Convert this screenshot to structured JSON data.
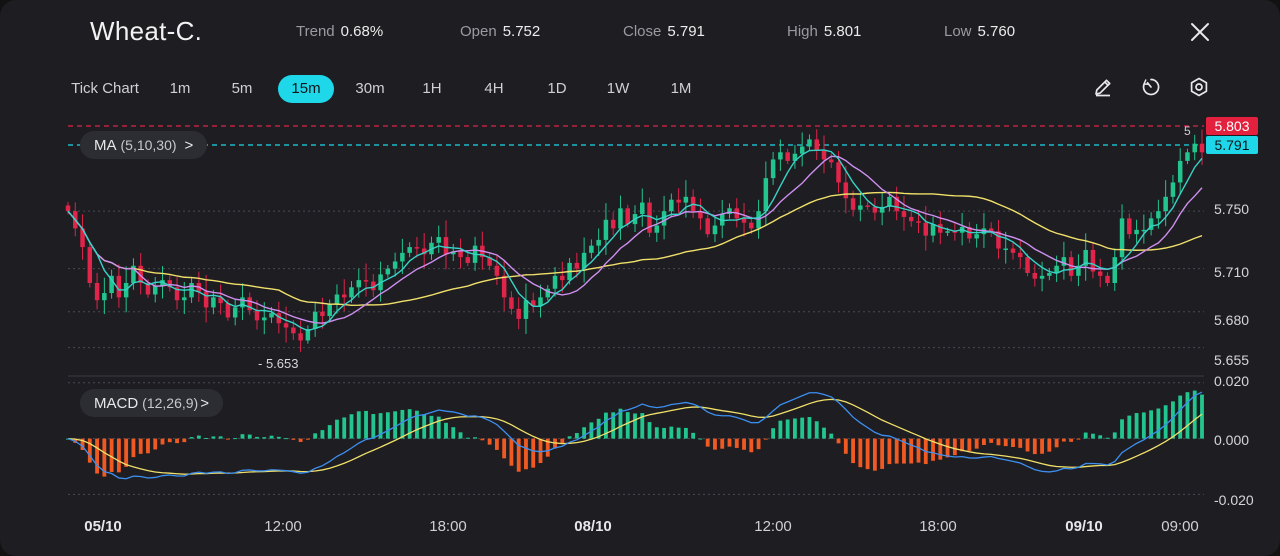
{
  "header": {
    "symbol": "Wheat-C.",
    "stats": [
      {
        "key": "Trend",
        "value": "0.68%"
      },
      {
        "key": "Open",
        "value": "5.752"
      },
      {
        "key": "Close",
        "value": "5.791"
      },
      {
        "key": "High",
        "value": "5.801"
      },
      {
        "key": "Low",
        "value": "5.760"
      }
    ],
    "close_icon": "close-icon"
  },
  "intervals": [
    "Tick Chart",
    "1m",
    "5m",
    "15m",
    "30m",
    "1H",
    "4H",
    "1D",
    "1W",
    "1M"
  ],
  "active_interval": "15m",
  "toolbar_icons": [
    "pencil-icon",
    "timer-icon",
    "settings-icon"
  ],
  "indicators": {
    "ma": {
      "name": "MA",
      "params": "(5,10,30)",
      "chevron": ">"
    },
    "macd": {
      "name": "MACD",
      "params": "(12,26,9)",
      "chevron": ">"
    }
  },
  "price_tags": {
    "high_line": "5.803",
    "current": "5.791",
    "truncated_label": "5"
  },
  "price_axis": [
    "5.750",
    "5.710",
    "5.680",
    "5.655"
  ],
  "macd_axis": [
    "0.020",
    "0.000",
    "-0.020"
  ],
  "low_marker": "5.653",
  "time_axis": [
    "05/10",
    "12:00",
    "18:00",
    "08/10",
    "12:00",
    "18:00",
    "09/10",
    "09:00"
  ],
  "colors": {
    "background": "#1d1d22",
    "up": "#22c58e",
    "down": "#e0244a",
    "accent": "#1ed8ea",
    "ma5": "#37d3c7",
    "ma10": "#cf8ff0",
    "ma30": "#f0e06a",
    "macd_line": "#3d8ff0",
    "signal_line": "#f0e06a",
    "hist_pos": "#22c58e",
    "hist_neg": "#f05a22"
  },
  "chart_data": {
    "type": "candlestick",
    "price_range": [
      5.645,
      5.81
    ],
    "macd_range": [
      -0.022,
      0.021
    ],
    "x_range": [
      0,
      150
    ],
    "closes": [
      5.75,
      5.738,
      5.725,
      5.7,
      5.688,
      5.693,
      5.705,
      5.69,
      5.7,
      5.712,
      5.7,
      5.692,
      5.698,
      5.702,
      5.697,
      5.688,
      5.69,
      5.7,
      5.694,
      5.683,
      5.69,
      5.686,
      5.676,
      5.683,
      5.69,
      5.681,
      5.674,
      5.676,
      5.679,
      5.672,
      5.669,
      5.665,
      5.66,
      5.668,
      5.68,
      5.677,
      5.685,
      5.692,
      5.69,
      5.697,
      5.702,
      5.701,
      5.695,
      5.706,
      5.71,
      5.715,
      5.721,
      5.725,
      5.724,
      5.72,
      5.728,
      5.732,
      5.72,
      5.722,
      5.718,
      5.714,
      5.726,
      5.718,
      5.712,
      5.705,
      5.69,
      5.682,
      5.675,
      5.688,
      5.684,
      5.69,
      5.696,
      5.705,
      5.702,
      5.714,
      5.71,
      5.721,
      5.726,
      5.73,
      5.744,
      5.738,
      5.752,
      5.741,
      5.748,
      5.756,
      5.735,
      5.74,
      5.75,
      5.758,
      5.756,
      5.76,
      5.75,
      5.745,
      5.734,
      5.74,
      5.748,
      5.752,
      5.745,
      5.742,
      5.738,
      5.75,
      5.773,
      5.786,
      5.791,
      5.785,
      5.79,
      5.795,
      5.8,
      5.792,
      5.786,
      5.784,
      5.77,
      5.759,
      5.751,
      5.754,
      5.753,
      5.749,
      5.753,
      5.76,
      5.75,
      5.746,
      5.743,
      5.742,
      5.733,
      5.741,
      5.735,
      5.736,
      5.735,
      5.739,
      5.731,
      5.734,
      5.738,
      5.736,
      5.724,
      5.724,
      5.721,
      5.718,
      5.707,
      5.703,
      5.705,
      5.707,
      5.712,
      5.718,
      5.705,
      5.712,
      5.723,
      5.708,
      5.705,
      5.7,
      5.718,
      5.745,
      5.734,
      5.737,
      5.737,
      5.745,
      5.75,
      5.76,
      5.77,
      5.785,
      5.791,
      5.797,
      5.791
    ],
    "series": [
      {
        "name": "MA5"
      },
      {
        "name": "MA10"
      },
      {
        "name": "MA30"
      },
      {
        "name": "MACD"
      },
      {
        "name": "Signal"
      }
    ]
  }
}
